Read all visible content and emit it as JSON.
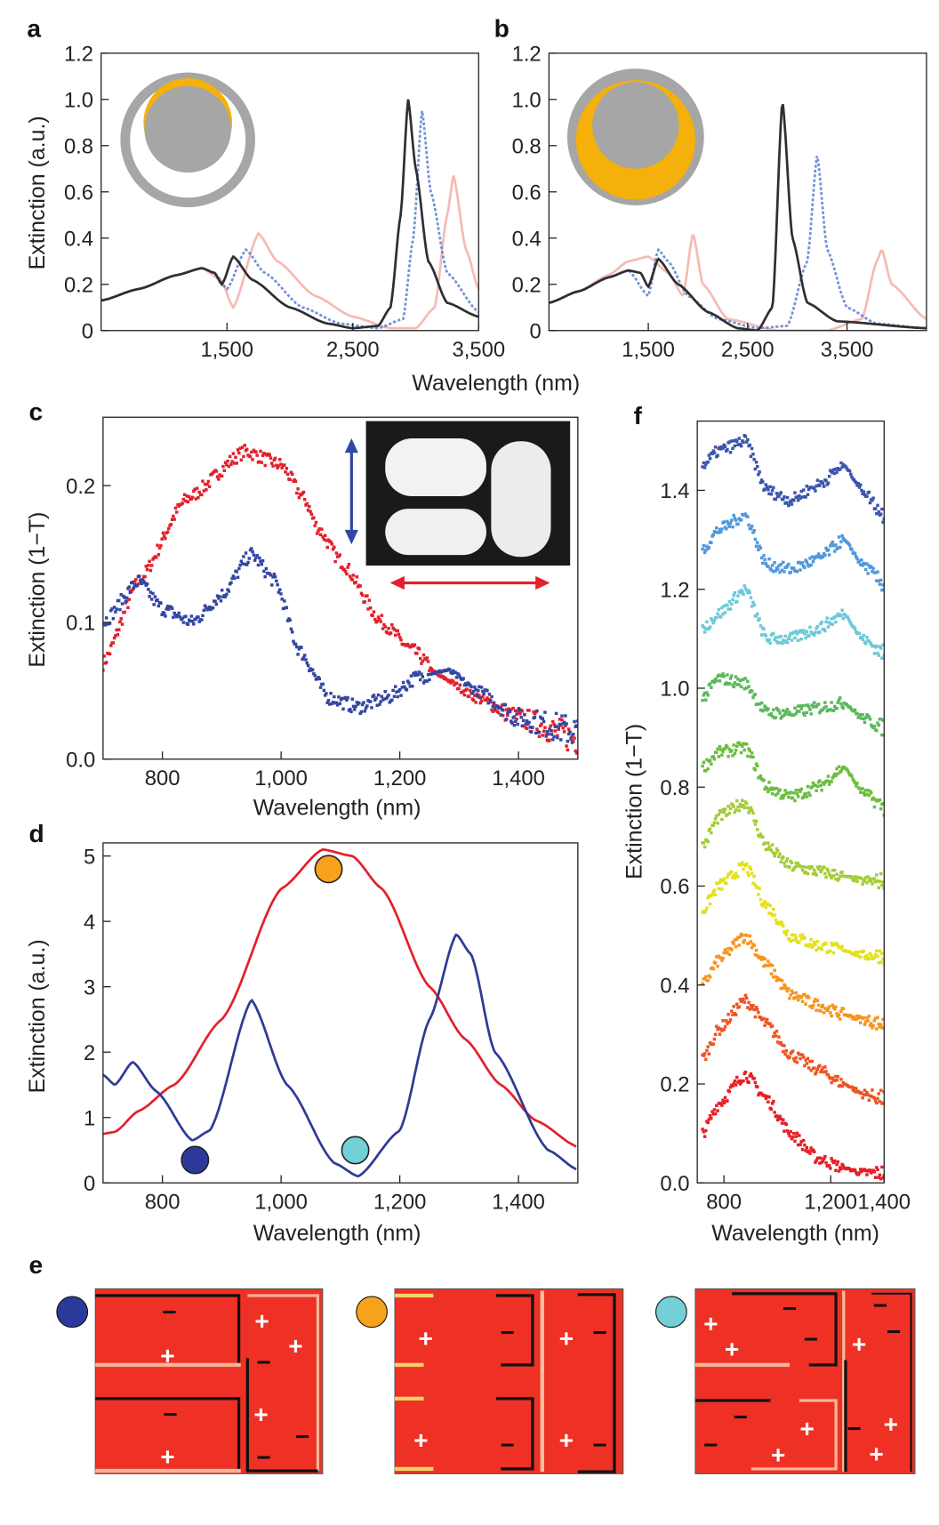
{
  "panel_labels": {
    "a": "a",
    "b": "b",
    "c": "c",
    "d": "d",
    "e": "e",
    "f": "f"
  },
  "axis_labels": {
    "ab_x": "Wavelength (nm)",
    "a_y": "Extinction (a.u.)",
    "c_x": "Wavelength (nm)",
    "c_y": "Extinction (1−T)",
    "d_x": "Wavelength (nm)",
    "d_y": "Extinction (a.u.)",
    "f_x": "Wavelength (nm)",
    "f_y": "Extinction (1−T)"
  },
  "colors": {
    "inset_gray": "#a6a6a6",
    "inset_gold": "#f5b10a",
    "field_red": "#ee3124",
    "marker_navy": "#2b3a9a",
    "marker_orange": "#f7a21b",
    "marker_cyan": "#72d0d6"
  },
  "chart_data": [
    {
      "id": "a",
      "type": "line",
      "xlim": [
        500,
        3500
      ],
      "ylim": [
        0,
        1.2
      ],
      "xticks": [
        {
          "v": 1500,
          "label": "1,500"
        },
        {
          "v": 2500,
          "label": "2,500"
        },
        {
          "v": 3500,
          "label": "3,500"
        }
      ],
      "yticks": [
        {
          "v": 0,
          "label": "0"
        },
        {
          "v": 0.2,
          "label": "0.2"
        },
        {
          "v": 0.4,
          "label": "0.4"
        },
        {
          "v": 0.6,
          "label": "0.6"
        },
        {
          "v": 0.8,
          "label": "0.8"
        },
        {
          "v": 1.0,
          "label": "1.0"
        },
        {
          "v": 1.2,
          "label": "1.2"
        }
      ],
      "series": [
        {
          "color": "#f3a39c",
          "style": "faded",
          "x": [
            500,
            800,
            1100,
            1300,
            1450,
            1550,
            1750,
            1900,
            2200,
            2500,
            2800,
            3000,
            3150,
            3250,
            3300,
            3400,
            3500
          ],
          "y": [
            0.13,
            0.18,
            0.24,
            0.27,
            0.22,
            0.1,
            0.42,
            0.3,
            0.15,
            0.06,
            0.01,
            0.01,
            0.1,
            0.5,
            0.67,
            0.35,
            0.18
          ]
        },
        {
          "color": "#5b7fd0",
          "style": "dotted",
          "x": [
            500,
            800,
            1100,
            1300,
            1400,
            1500,
            1650,
            1800,
            2100,
            2400,
            2700,
            2900,
            2980,
            3050,
            3120,
            3250,
            3500
          ],
          "y": [
            0.13,
            0.18,
            0.24,
            0.27,
            0.25,
            0.18,
            0.35,
            0.25,
            0.1,
            0.03,
            0.01,
            0.05,
            0.4,
            0.95,
            0.6,
            0.25,
            0.08
          ]
        },
        {
          "color": "#2f2f2f",
          "style": "solid",
          "x": [
            500,
            800,
            1100,
            1300,
            1400,
            1460,
            1550,
            1700,
            2000,
            2300,
            2500,
            2700,
            2800,
            2880,
            2940,
            3000,
            3100,
            3250,
            3500
          ],
          "y": [
            0.13,
            0.18,
            0.24,
            0.27,
            0.25,
            0.2,
            0.32,
            0.22,
            0.1,
            0.03,
            0.01,
            0.02,
            0.1,
            0.5,
            1.0,
            0.7,
            0.3,
            0.12,
            0.06
          ]
        }
      ]
    },
    {
      "id": "b",
      "type": "line",
      "xlim": [
        500,
        4300
      ],
      "ylim": [
        0,
        1.2
      ],
      "xticks": [
        {
          "v": 1500,
          "label": "1,500"
        },
        {
          "v": 2500,
          "label": "2,500"
        },
        {
          "v": 3500,
          "label": "3,500"
        }
      ],
      "yticks": [
        {
          "v": 0,
          "label": "0"
        },
        {
          "v": 0.2,
          "label": "0.2"
        },
        {
          "v": 0.4,
          "label": "0.4"
        },
        {
          "v": 0.6,
          "label": "0.6"
        },
        {
          "v": 0.8,
          "label": "0.8"
        },
        {
          "v": 1.0,
          "label": "1.0"
        },
        {
          "v": 1.2,
          "label": "1.2"
        }
      ],
      "series": [
        {
          "color": "#f3a39c",
          "style": "faded",
          "x": [
            500,
            800,
            1100,
            1300,
            1500,
            1700,
            1850,
            1950,
            2050,
            2300,
            2800,
            3300,
            3650,
            3800,
            3850,
            3950,
            4300
          ],
          "y": [
            0.12,
            0.17,
            0.24,
            0.3,
            0.32,
            0.25,
            0.15,
            0.42,
            0.2,
            0.05,
            0.0,
            0.0,
            0.05,
            0.3,
            0.35,
            0.2,
            0.05
          ]
        },
        {
          "color": "#5b7fd0",
          "style": "dotted",
          "x": [
            500,
            800,
            1100,
            1300,
            1500,
            1600,
            1700,
            1900,
            2200,
            2600,
            2900,
            3100,
            3200,
            3300,
            3500,
            3800,
            4300
          ],
          "y": [
            0.12,
            0.17,
            0.23,
            0.26,
            0.15,
            0.35,
            0.3,
            0.15,
            0.05,
            0.01,
            0.02,
            0.3,
            0.76,
            0.35,
            0.1,
            0.03,
            0.01
          ]
        },
        {
          "color": "#2f2f2f",
          "style": "solid",
          "x": [
            500,
            800,
            1100,
            1300,
            1420,
            1500,
            1600,
            1800,
            2100,
            2400,
            2600,
            2750,
            2850,
            2950,
            3100,
            3400,
            4300
          ],
          "y": [
            0.12,
            0.17,
            0.23,
            0.26,
            0.25,
            0.19,
            0.31,
            0.2,
            0.08,
            0.01,
            0.0,
            0.1,
            1.0,
            0.4,
            0.12,
            0.04,
            0.01
          ]
        }
      ]
    },
    {
      "id": "c",
      "type": "scatter",
      "xlim": [
        700,
        1500
      ],
      "ylim": [
        0,
        0.25
      ],
      "xticks": [
        {
          "v": 800,
          "label": "800"
        },
        {
          "v": 1000,
          "label": "1,000"
        },
        {
          "v": 1200,
          "label": "1,200"
        },
        {
          "v": 1400,
          "label": "1,400"
        }
      ],
      "yticks": [
        {
          "v": 0,
          "label": "0.0"
        },
        {
          "v": 0.1,
          "label": "0.1"
        },
        {
          "v": 0.2,
          "label": "0.2"
        }
      ],
      "series": [
        {
          "color": "#e3202b",
          "x": [
            700,
            760,
            840,
            940,
            1000,
            1040,
            1060,
            1100,
            1170,
            1220,
            1270,
            1330,
            1400,
            1500
          ],
          "y": [
            0.07,
            0.13,
            0.19,
            0.225,
            0.215,
            0.19,
            0.17,
            0.145,
            0.1,
            0.08,
            0.06,
            0.045,
            0.03,
            0.015
          ]
        },
        {
          "color": "#3346a3",
          "x": [
            700,
            760,
            800,
            850,
            900,
            950,
            990,
            1030,
            1080,
            1130,
            1180,
            1230,
            1280,
            1330,
            1400,
            1500
          ],
          "y": [
            0.1,
            0.13,
            0.11,
            0.1,
            0.12,
            0.15,
            0.13,
            0.08,
            0.045,
            0.038,
            0.045,
            0.06,
            0.065,
            0.05,
            0.03,
            0.02
          ]
        }
      ]
    },
    {
      "id": "d",
      "type": "line",
      "xlim": [
        700,
        1500
      ],
      "ylim": [
        0,
        5.2
      ],
      "xticks": [
        {
          "v": 800,
          "label": "800"
        },
        {
          "v": 1000,
          "label": "1,000"
        },
        {
          "v": 1200,
          "label": "1,200"
        },
        {
          "v": 1400,
          "label": "1,400"
        }
      ],
      "yticks": [
        {
          "v": 0,
          "label": "0"
        },
        {
          "v": 1,
          "label": "1"
        },
        {
          "v": 2,
          "label": "2"
        },
        {
          "v": 3,
          "label": "3"
        },
        {
          "v": 4,
          "label": "4"
        },
        {
          "v": 5,
          "label": "5"
        }
      ],
      "series": [
        {
          "color": "#e3202b",
          "style": "solid",
          "x": [
            700,
            720,
            760,
            820,
            900,
            1000,
            1070,
            1120,
            1170,
            1250,
            1310,
            1370,
            1430,
            1500
          ],
          "y": [
            0.75,
            0.78,
            1.1,
            1.5,
            2.5,
            4.5,
            5.1,
            5.0,
            4.5,
            3.0,
            2.2,
            1.5,
            0.95,
            0.55
          ]
        },
        {
          "color": "#2e3a96",
          "style": "solid",
          "x": [
            700,
            720,
            750,
            790,
            850,
            880,
            950,
            1010,
            1090,
            1130,
            1200,
            1250,
            1295,
            1320,
            1360,
            1450,
            1500
          ],
          "y": [
            1.65,
            1.5,
            1.85,
            1.4,
            0.65,
            0.8,
            2.8,
            1.5,
            0.3,
            0.1,
            0.8,
            2.5,
            3.8,
            3.5,
            2.0,
            0.5,
            0.2
          ]
        }
      ],
      "markers": [
        {
          "x": 855,
          "y": 0.35,
          "color": "#2b3a9a"
        },
        {
          "x": 1080,
          "y": 4.8,
          "color": "#f7a21b"
        },
        {
          "x": 1125,
          "y": 0.5,
          "color": "#72d0d6"
        }
      ]
    },
    {
      "id": "f",
      "type": "scatter",
      "xlim": [
        700,
        1400
      ],
      "ylim": [
        0,
        1.54
      ],
      "xticks": [
        {
          "v": 800,
          "label": "800"
        },
        {
          "v": 1200,
          "label": "1,200"
        },
        {
          "v": 1400,
          "label": "1,400"
        }
      ],
      "yticks": [
        {
          "v": 0,
          "label": "0.0"
        },
        {
          "v": 0.2,
          "label": "0.2"
        },
        {
          "v": 0.4,
          "label": "0.4"
        },
        {
          "v": 0.6,
          "label": "0.6"
        },
        {
          "v": 0.8,
          "label": "0.8"
        },
        {
          "v": 1.0,
          "label": "1.0"
        },
        {
          "v": 1.2,
          "label": "1.2"
        },
        {
          "v": 1.4,
          "label": "1.4"
        }
      ],
      "x": [
        720,
        780,
        880,
        960,
        1050,
        1150,
        1250,
        1320,
        1400
      ],
      "series": [
        {
          "color": "#e81e25",
          "y": [
            0.1,
            0.16,
            0.22,
            0.17,
            0.1,
            0.05,
            0.03,
            0.02,
            0.02
          ]
        },
        {
          "color": "#ef5323",
          "y": [
            0.25,
            0.31,
            0.37,
            0.32,
            0.26,
            0.23,
            0.2,
            0.18,
            0.17
          ]
        },
        {
          "color": "#f7941d",
          "y": [
            0.4,
            0.45,
            0.5,
            0.44,
            0.38,
            0.36,
            0.34,
            0.33,
            0.32
          ]
        },
        {
          "color": "#e3e01c",
          "y": [
            0.55,
            0.6,
            0.64,
            0.56,
            0.5,
            0.48,
            0.47,
            0.46,
            0.46
          ]
        },
        {
          "color": "#a3cc38",
          "y": [
            0.68,
            0.74,
            0.77,
            0.68,
            0.64,
            0.63,
            0.62,
            0.61,
            0.61
          ]
        },
        {
          "color": "#6cbd3e",
          "y": [
            0.84,
            0.87,
            0.88,
            0.8,
            0.78,
            0.8,
            0.84,
            0.79,
            0.76
          ]
        },
        {
          "color": "#5bb85d",
          "y": [
            0.98,
            1.02,
            1.01,
            0.95,
            0.95,
            0.96,
            0.97,
            0.94,
            0.92
          ]
        },
        {
          "color": "#6cc9d6",
          "y": [
            1.12,
            1.15,
            1.2,
            1.1,
            1.1,
            1.12,
            1.15,
            1.1,
            1.07
          ]
        },
        {
          "color": "#4f98dc",
          "y": [
            1.28,
            1.32,
            1.35,
            1.25,
            1.24,
            1.26,
            1.3,
            1.25,
            1.21
          ]
        },
        {
          "color": "#3a55ad",
          "y": [
            1.45,
            1.48,
            1.5,
            1.4,
            1.38,
            1.41,
            1.45,
            1.4,
            1.35
          ]
        }
      ]
    }
  ],
  "field_maps": {
    "plus": "+",
    "minus": "−"
  }
}
